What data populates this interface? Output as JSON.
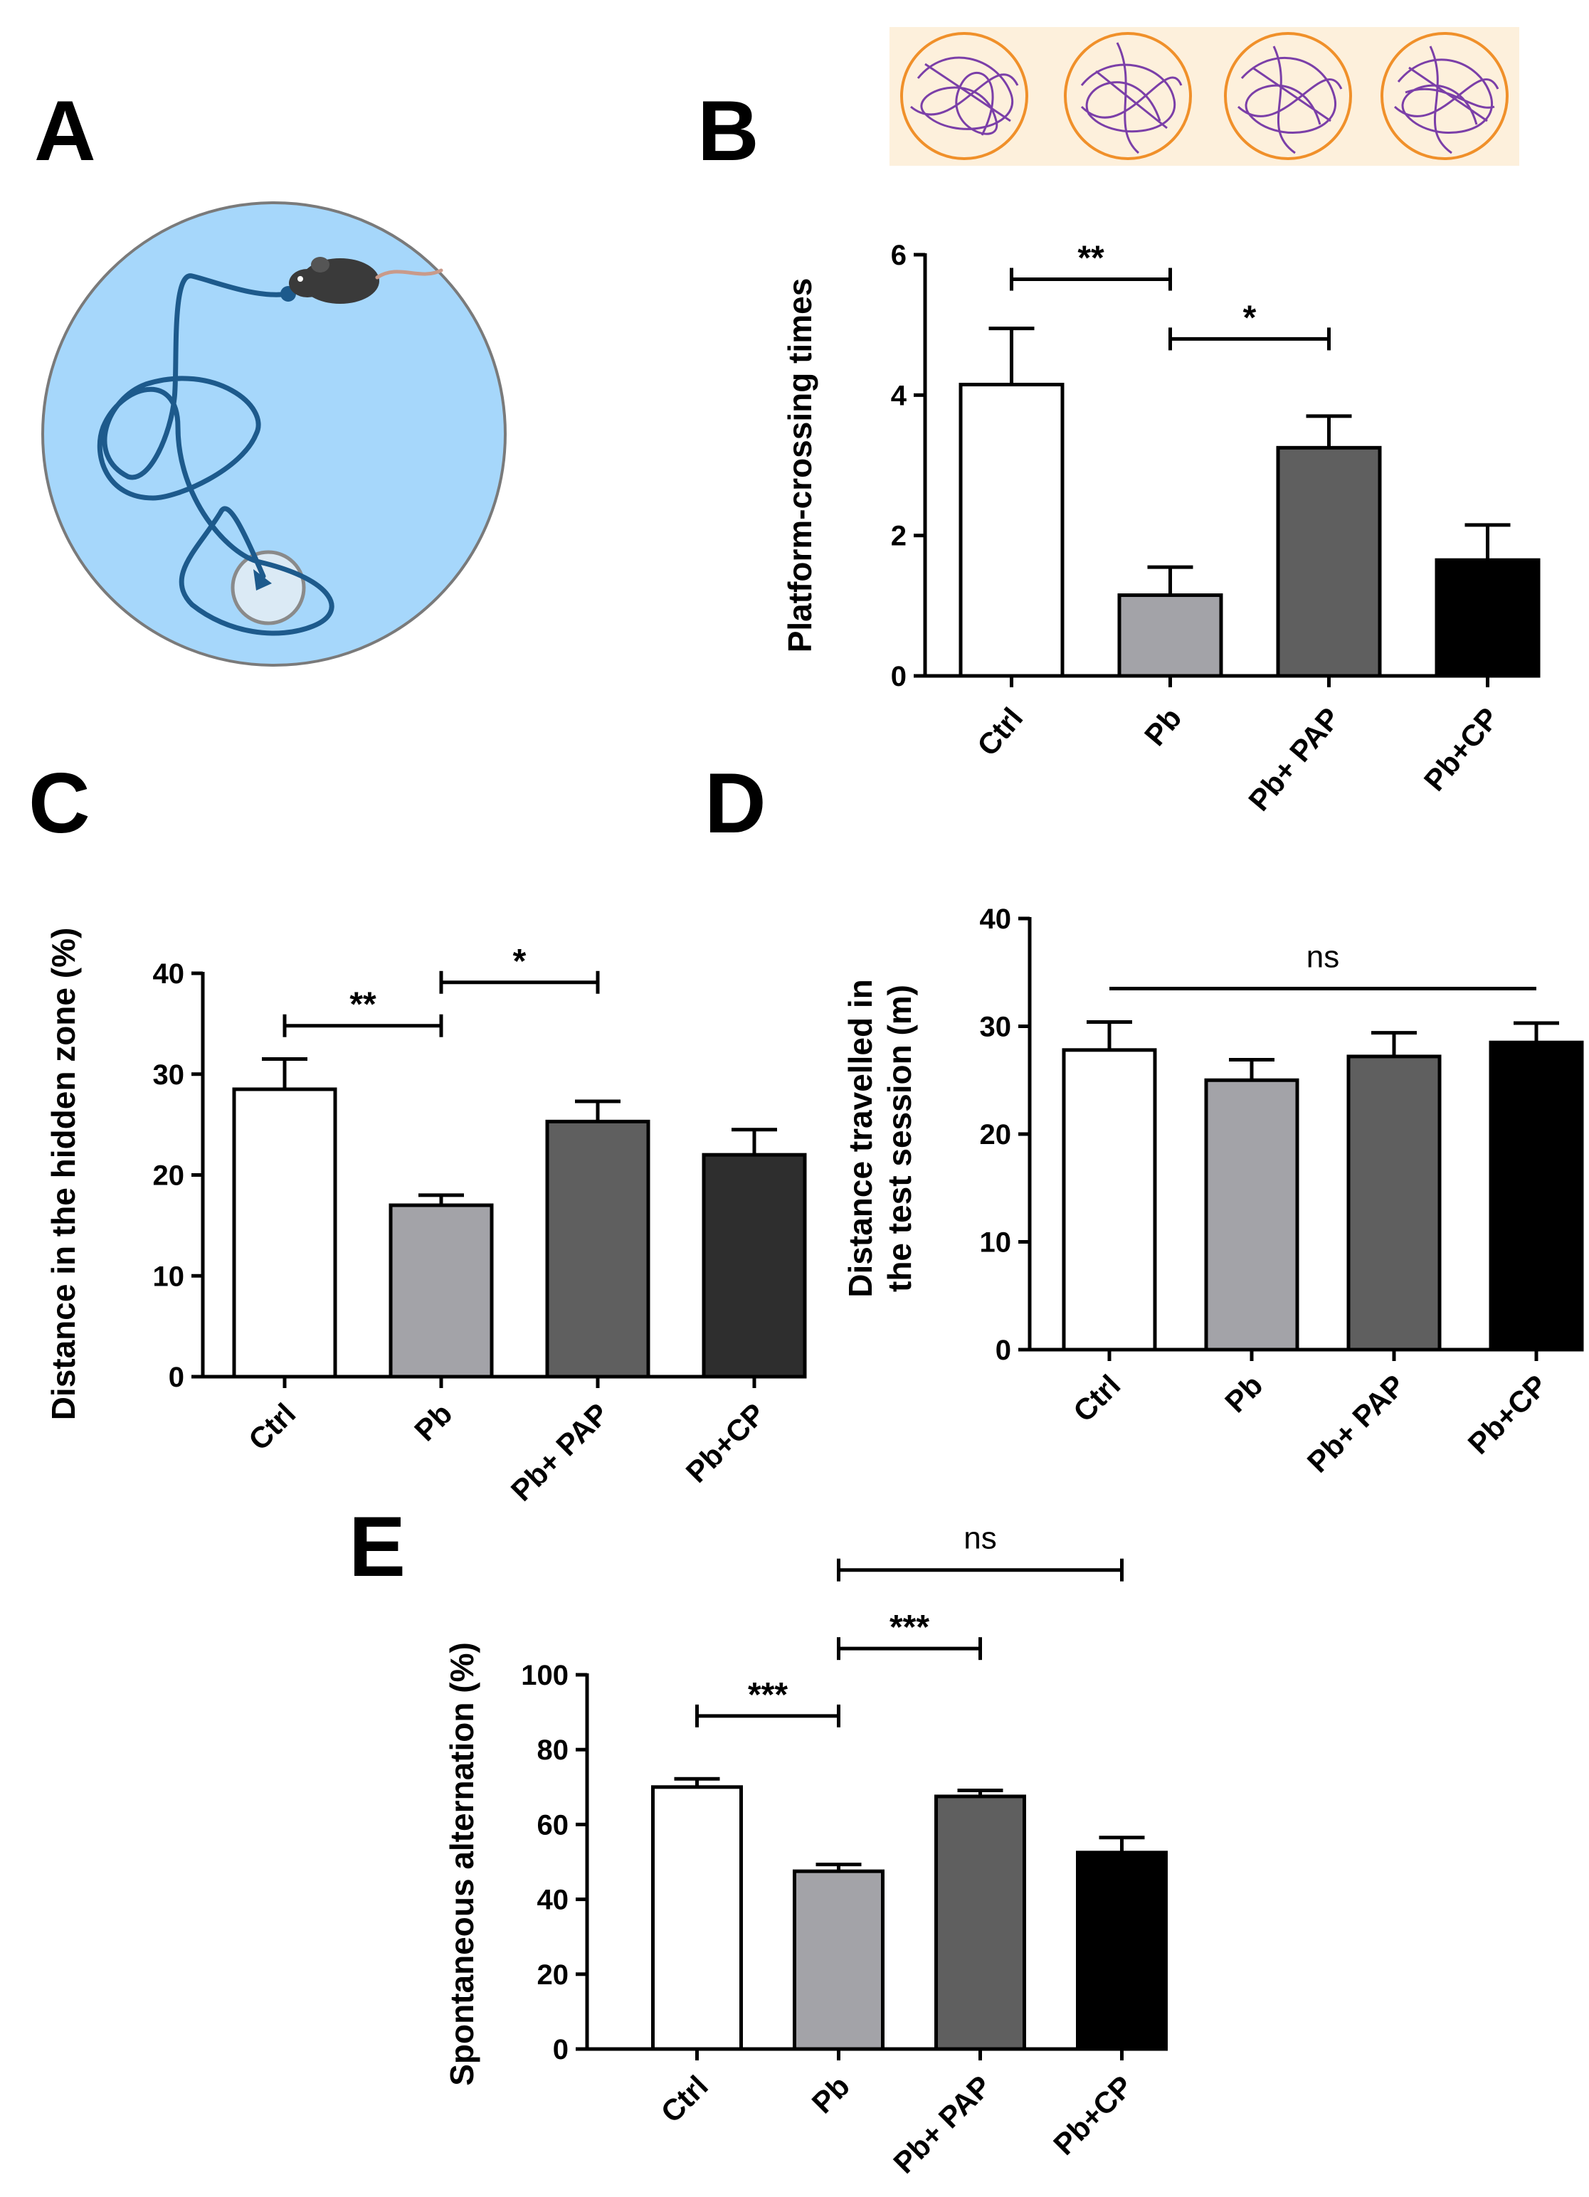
{
  "panels": {
    "a": {
      "letter": "A"
    },
    "b": {
      "letter": "B"
    },
    "c": {
      "letter": "C"
    },
    "d": {
      "letter": "D"
    },
    "e": {
      "letter": "E"
    }
  },
  "colors": {
    "ctrl": "#ffffff",
    "pb": "#a3a3a8",
    "pb_pap": "#5f5f5f",
    "pb_cp": "#000000",
    "pb_cp_c": "#2e2e2e",
    "maze_pool": "#a6d7fb",
    "maze_path": "#1d5a8c",
    "track_bg": "#fdf0dc",
    "track_ring": "#f0902a",
    "track_path": "#7b3fa8"
  },
  "chart_data": [
    {
      "id": "B",
      "type": "bar",
      "title": "",
      "xlabel": "",
      "ylabel": "Platform-crossing times",
      "categories": [
        "Ctrl",
        "Pb",
        "Pb+ PAP",
        "Pb+CP"
      ],
      "values": [
        4.15,
        1.15,
        3.25,
        1.65
      ],
      "errors": [
        0.8,
        0.4,
        0.45,
        0.5
      ],
      "ylim": [
        0,
        6
      ],
      "yticks": [
        "0",
        "2",
        "4",
        "6"
      ],
      "yticks_values": [
        0,
        2,
        4,
        6
      ],
      "significance": [
        {
          "from": 0,
          "to": 1,
          "label": "**",
          "y": 5.65
        },
        {
          "from": 1,
          "to": 2,
          "label": "*",
          "y": 4.8
        }
      ]
    },
    {
      "id": "C",
      "type": "bar",
      "title": "",
      "xlabel": "",
      "ylabel": "Distance in the hidden zone (%)",
      "categories": [
        "Ctrl",
        "Pb",
        "Pb+ PAP",
        "Pb+CP"
      ],
      "values": [
        28.5,
        17.0,
        25.3,
        22.0
      ],
      "errors": [
        3.0,
        1.0,
        2.0,
        2.5
      ],
      "ylim": [
        0,
        40
      ],
      "yticks": [
        "0",
        "10",
        "20",
        "30",
        "40"
      ],
      "yticks_values": [
        0,
        10,
        20,
        30,
        40
      ],
      "significance": [
        {
          "from": 0,
          "to": 1,
          "label": "**",
          "y": 34.8
        },
        {
          "from": 1,
          "to": 2,
          "label": "*",
          "y": 39.1
        }
      ]
    },
    {
      "id": "D",
      "type": "bar",
      "title": "",
      "xlabel": "",
      "ylabel": "Distance travelled in the test session (m)",
      "ylabel_lines": [
        "Distance travelled in",
        "the test session (m)"
      ],
      "categories": [
        "Ctrl",
        "Pb",
        "Pb+ PAP",
        "Pb+CP"
      ],
      "values": [
        27.8,
        25.0,
        27.2,
        28.5
      ],
      "errors": [
        2.6,
        1.9,
        2.2,
        1.8
      ],
      "ylim": [
        0,
        40
      ],
      "yticks": [
        "0",
        "10",
        "20",
        "30",
        "40"
      ],
      "yticks_values": [
        0,
        10,
        20,
        30,
        40
      ],
      "significance": [
        {
          "from": 0,
          "to": 3,
          "label": "ns",
          "y": 33.5,
          "caps": false
        }
      ]
    },
    {
      "id": "E",
      "type": "bar",
      "title": "",
      "xlabel": "",
      "ylabel": "Spontaneous alternation (%)",
      "categories": [
        "Ctrl",
        "Pb",
        "Pb+ PAP",
        "Pb+CP"
      ],
      "values": [
        70.0,
        47.5,
        67.5,
        52.5
      ],
      "errors": [
        2.2,
        1.8,
        1.6,
        4.0
      ],
      "ylim": [
        0,
        100
      ],
      "yticks": [
        "0",
        "20",
        "40",
        "60",
        "80",
        "100"
      ],
      "yticks_values": [
        0,
        20,
        40,
        60,
        80,
        100
      ],
      "significance": [
        {
          "from": 0,
          "to": 1,
          "label": "***",
          "y": 89
        },
        {
          "from": 1,
          "to": 2,
          "label": "***",
          "y": 107
        },
        {
          "from": 1,
          "to": 3,
          "label": "ns",
          "y": 128
        }
      ]
    }
  ]
}
